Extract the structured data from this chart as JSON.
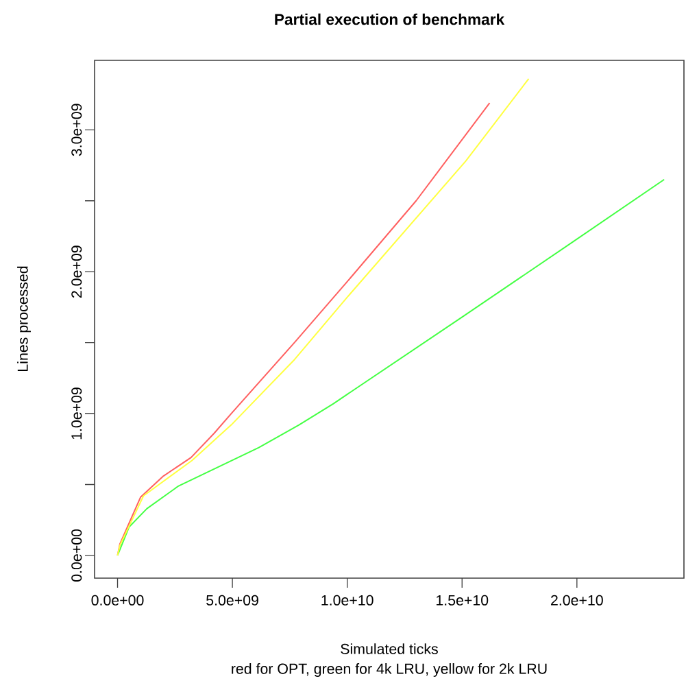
{
  "chart_data": {
    "type": "line",
    "title": "Partial execution of benchmark",
    "xlabel": "Simulated ticks",
    "ylabel": "Lines processed",
    "annotations": [
      "red for OPT, green for 4k LRU, yellow for 2k LRU"
    ],
    "xlim": [
      -1000000000.0,
      24660000000.0
    ],
    "ylim": [
      -160000000.0,
      3490000000.0
    ],
    "xticks": [
      {
        "value": 0,
        "label": "0.0e+00"
      },
      {
        "value": 5000000000.0,
        "label": "5.0e+09"
      },
      {
        "value": 10000000000.0,
        "label": "1.0e+10"
      },
      {
        "value": 15000000000.0,
        "label": "1.5e+10"
      },
      {
        "value": 20000000000.0,
        "label": "2.0e+10"
      }
    ],
    "yticks": [
      {
        "value": 0,
        "label": "0.0e+00"
      },
      {
        "value": 500000000.0,
        "label": null
      },
      {
        "value": 1000000000.0,
        "label": "1.0e+09"
      },
      {
        "value": 1500000000.0,
        "label": null
      },
      {
        "value": 2000000000.0,
        "label": "2.0e+09"
      },
      {
        "value": 2500000000.0,
        "label": null
      },
      {
        "value": 3000000000.0,
        "label": "3.0e+09"
      }
    ],
    "grid": false,
    "marker": "none",
    "line_style": "solid",
    "series": [
      {
        "color": "#ff6060",
        "x": [
          0,
          100000000.0,
          1000000000.0,
          2000000000.0,
          3200000000.0,
          4200000000.0,
          4950000000.0,
          7700000000.0,
          10000000000.0,
          13000000000.0,
          16200000000.0
        ],
        "values": [
          0,
          80000000.0,
          410000000.0,
          560000000.0,
          690000000.0,
          860000000.0,
          1000000000.0,
          1500000000.0,
          1930000000.0,
          2500000000.0,
          3190000000.0
        ]
      },
      {
        "color": "#44ff44",
        "x": [
          0,
          500000000.0,
          1280000000.0,
          2660000000.0,
          6150000000.0,
          7900000000.0,
          9400000000.0,
          15000000000.0,
          19640000000.0,
          23800000000.0
        ],
        "values": [
          0,
          200000000.0,
          330000000.0,
          490000000.0,
          760000000.0,
          920000000.0,
          1070000000.0,
          1680000000.0,
          2190000000.0,
          2650000000.0
        ]
      },
      {
        "color": "#ffff40",
        "x": [
          0,
          100000000.0,
          1130000000.0,
          3250000000.0,
          4950000000.0,
          7700000000.0,
          10000000000.0,
          15160000000.0,
          17900000000.0
        ],
        "values": [
          0,
          70000000.0,
          420000000.0,
          670000000.0,
          920000000.0,
          1380000000.0,
          1820000000.0,
          2780000000.0,
          3360000000.0
        ]
      }
    ]
  }
}
